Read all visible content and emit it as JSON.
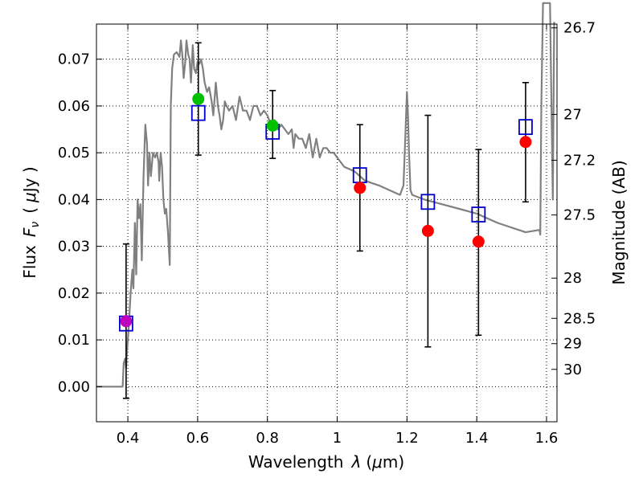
{
  "chart_data": {
    "type": "scatter",
    "xlabel_text": "Wavelength",
    "xlabel_symbol": "λ",
    "xlabel_unit_open": "(",
    "xlabel_unit_mu": "μ",
    "xlabel_unit_rest": "m)",
    "ylabel_text": "Flux",
    "ylabel_symbol": "F",
    "ylabel_sub": "ν",
    "ylabel_unit_open": "(",
    "ylabel_unit_mu": "μ",
    "ylabel_unit_rest": "Jy )",
    "y2label": "Magnitude (AB)",
    "xlim": [
      0.31,
      1.63
    ],
    "ylim": [
      -0.0075,
      0.0775
    ],
    "grid": true,
    "x_ticks": [
      {
        "value": 0.4,
        "label": "0.4"
      },
      {
        "value": 0.6,
        "label": "0.6"
      },
      {
        "value": 0.8,
        "label": "0.8"
      },
      {
        "value": 1.0,
        "label": "1"
      },
      {
        "value": 1.2,
        "label": "1.2"
      },
      {
        "value": 1.4,
        "label": "1.4"
      },
      {
        "value": 1.6,
        "label": "1.6"
      }
    ],
    "y_ticks": [
      {
        "value": 0.0,
        "label": "0.00"
      },
      {
        "value": 0.01,
        "label": "0.01"
      },
      {
        "value": 0.02,
        "label": "0.02"
      },
      {
        "value": 0.03,
        "label": "0.03"
      },
      {
        "value": 0.04,
        "label": "0.04"
      },
      {
        "value": 0.05,
        "label": "0.05"
      },
      {
        "value": 0.06,
        "label": "0.06"
      },
      {
        "value": 0.07,
        "label": "0.07"
      }
    ],
    "magnitude_ticks": [
      {
        "label": "26.7",
        "flux": 0.0767
      },
      {
        "label": "27",
        "flux": 0.0582
      },
      {
        "label": "27.2",
        "flux": 0.0484
      },
      {
        "label": "27.5",
        "flux": 0.0367
      },
      {
        "label": "28",
        "flux": 0.0232
      },
      {
        "label": "28.5",
        "flux": 0.0146
      },
      {
        "label": "29",
        "flux": 0.0092
      },
      {
        "label": "30",
        "flux": 0.0037
      }
    ],
    "series": [
      {
        "kind": "model_spectrum",
        "color": "#808080",
        "x": [
          0.31,
          0.385,
          0.388,
          0.392,
          0.395,
          0.398,
          0.402,
          0.408,
          0.413,
          0.416,
          0.42,
          0.424,
          0.428,
          0.432,
          0.436,
          0.44,
          0.445,
          0.45,
          0.455,
          0.458,
          0.462,
          0.466,
          0.472,
          0.478,
          0.483,
          0.488,
          0.49,
          0.494,
          0.498,
          0.502,
          0.506,
          0.51,
          0.515,
          0.52,
          0.523,
          0.527,
          0.532,
          0.54,
          0.548,
          0.552,
          0.556,
          0.56,
          0.564,
          0.568,
          0.573,
          0.577,
          0.581,
          0.586,
          0.59,
          0.595,
          0.6,
          0.605,
          0.61,
          0.615,
          0.62,
          0.627,
          0.633,
          0.64,
          0.645,
          0.652,
          0.658,
          0.663,
          0.668,
          0.673,
          0.678,
          0.683,
          0.69,
          0.7,
          0.71,
          0.72,
          0.73,
          0.74,
          0.75,
          0.76,
          0.77,
          0.78,
          0.79,
          0.8,
          0.81,
          0.82,
          0.83,
          0.84,
          0.85,
          0.86,
          0.87,
          0.875,
          0.88,
          0.89,
          0.9,
          0.91,
          0.92,
          0.93,
          0.94,
          0.95,
          0.96,
          0.97,
          0.98,
          0.99,
          1.0,
          1.02,
          1.05,
          1.08,
          1.12,
          1.15,
          1.18,
          1.19,
          1.195,
          1.2,
          1.203,
          1.206,
          1.21,
          1.215,
          1.25,
          1.3,
          1.35,
          1.4,
          1.43,
          1.46,
          1.5,
          1.54,
          1.58,
          1.582,
          1.585,
          1.59,
          1.61,
          1.618,
          1.622
        ],
        "y": [
          0.0,
          0.0,
          0.005,
          0.006,
          0.004,
          0.008,
          0.012,
          0.02,
          0.025,
          0.021,
          0.035,
          0.024,
          0.04,
          0.036,
          0.039,
          0.027,
          0.045,
          0.056,
          0.052,
          0.043,
          0.05,
          0.045,
          0.05,
          0.049,
          0.05,
          0.048,
          0.044,
          0.05,
          0.047,
          0.04,
          0.037,
          0.038,
          0.033,
          0.026,
          0.06,
          0.068,
          0.071,
          0.0715,
          0.0705,
          0.074,
          0.071,
          0.066,
          0.069,
          0.074,
          0.071,
          0.07,
          0.065,
          0.073,
          0.068,
          0.067,
          0.0695,
          0.069,
          0.07,
          0.068,
          0.065,
          0.063,
          0.064,
          0.061,
          0.058,
          0.065,
          0.06,
          0.058,
          0.055,
          0.057,
          0.061,
          0.06,
          0.059,
          0.06,
          0.057,
          0.062,
          0.059,
          0.059,
          0.057,
          0.06,
          0.06,
          0.058,
          0.059,
          0.058,
          0.056,
          0.057,
          0.055,
          0.056,
          0.055,
          0.054,
          0.055,
          0.051,
          0.054,
          0.053,
          0.053,
          0.051,
          0.054,
          0.049,
          0.053,
          0.049,
          0.051,
          0.051,
          0.05,
          0.05,
          0.049,
          0.047,
          0.046,
          0.044,
          0.043,
          0.042,
          0.041,
          0.043,
          0.053,
          0.063,
          0.058,
          0.05,
          0.042,
          0.041,
          0.04,
          0.039,
          0.038,
          0.037,
          0.036,
          0.035,
          0.034,
          0.033,
          0.0335,
          0.0325,
          0.06,
          0.082,
          0.082,
          0.04,
          0.078
        ]
      },
      {
        "kind": "model_photometry_open_squares",
        "color": "#0000cc",
        "x": [
          0.395,
          0.602,
          0.815,
          1.065,
          1.26,
          1.405,
          1.54
        ],
        "y": [
          0.0135,
          0.0585,
          0.0545,
          0.0452,
          0.0395,
          0.0368,
          0.0555
        ]
      },
      {
        "kind": "observed_photometry",
        "x": [
          0.395,
          0.602,
          0.815,
          1.065,
          1.26,
          1.405,
          1.54
        ],
        "y": [
          0.014,
          0.0615,
          0.0558,
          0.0425,
          0.0333,
          0.031,
          0.0523
        ],
        "yerr_low": [
          -0.0025,
          0.0495,
          0.0488,
          0.029,
          0.0085,
          0.011,
          0.0395
        ],
        "yerr_high": [
          0.0305,
          0.0735,
          0.0633,
          0.056,
          0.058,
          0.0507,
          0.065
        ],
        "colors": [
          "#bf00bf",
          "#00c000",
          "#00c000",
          "#ff0000",
          "#ff0000",
          "#ff0000",
          "#ff0000"
        ]
      }
    ]
  }
}
